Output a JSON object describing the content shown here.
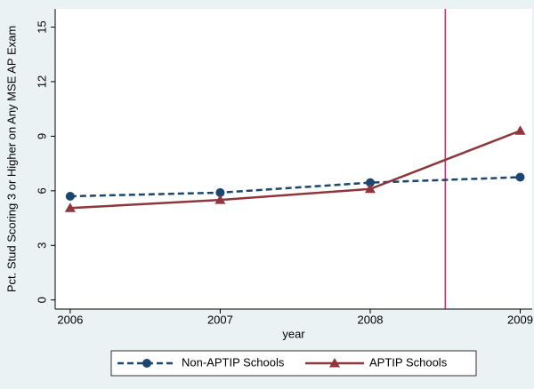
{
  "chart_data": {
    "type": "line",
    "x": [
      2006,
      2007,
      2008,
      2009
    ],
    "series": [
      {
        "name": "Non-APTIP Schools",
        "color": "#1a476f",
        "dash": "dashed",
        "marker": "circle",
        "values": [
          5.7,
          5.9,
          6.45,
          6.75
        ]
      },
      {
        "name": "APTIP Schools",
        "color": "#90353b",
        "dash": "solid",
        "marker": "triangle",
        "values": [
          5.05,
          5.5,
          6.1,
          9.3
        ]
      }
    ],
    "xlabel": "year",
    "ylabel": "Pct. Stud Scoring 3 or Higher on Any MSE AP Exam",
    "xlim": [
      2005.9,
      2009.08
    ],
    "xticks": [
      2006,
      2007,
      2008,
      2009
    ],
    "ylim": [
      -0.5,
      16
    ],
    "yticks": [
      0,
      3,
      6,
      9,
      12,
      15
    ],
    "xline": 2008.5,
    "xline_color": "#c10534",
    "grid": false,
    "legend": "bottom"
  }
}
